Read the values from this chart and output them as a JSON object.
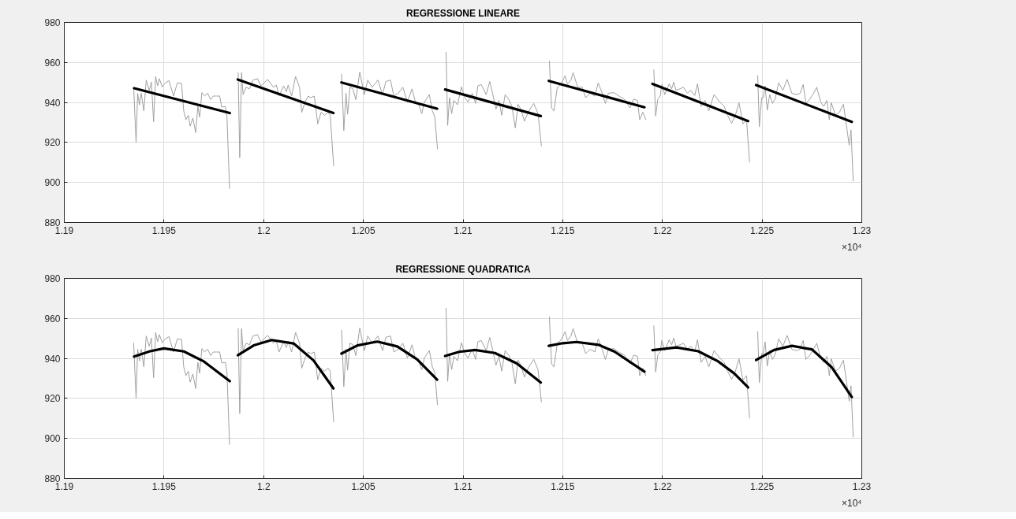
{
  "chart_data": [
    {
      "type": "line",
      "title": "REGRESSIONE LINEARE",
      "annotations": [
        "×10⁴"
      ],
      "grid": true,
      "xlim": [
        1.19,
        1.23
      ],
      "xticks": [
        1.19,
        1.195,
        1.2,
        1.205,
        1.21,
        1.215,
        1.22,
        1.225,
        1.23
      ],
      "ylim": [
        880,
        980
      ],
      "yticks": [
        880,
        900,
        920,
        940,
        960,
        980
      ],
      "series": [
        {
          "color": "#a0a0a0",
          "x": [
            1.19348,
            1.1936,
            1.19368,
            1.19377,
            1.19386,
            1.19399,
            1.19411,
            1.19426,
            1.19437,
            1.19448,
            1.19458,
            1.19468,
            1.19477,
            1.19491,
            1.19506,
            1.19525,
            1.19548,
            1.19567,
            1.19588,
            1.19599,
            1.1961,
            1.19622,
            1.19631,
            1.19645,
            1.19659,
            1.1967,
            1.19679,
            1.1969,
            1.19704,
            1.19719,
            1.19734,
            1.19747,
            1.19764,
            1.19779,
            1.1979,
            1.19808,
            1.19816,
            1.19829,
            1.1985,
            1.19872,
            1.1988,
            1.19889,
            1.19897,
            1.19912,
            1.19929,
            1.19946,
            1.19969,
            1.19986,
            1.2002,
            1.20049,
            1.20064,
            1.20077,
            1.201,
            1.20114,
            1.20123,
            1.2014,
            1.2016,
            1.2018,
            1.20191,
            1.20208,
            1.20223,
            1.20237,
            1.20254,
            1.20271,
            1.20288,
            1.20305,
            1.20323,
            1.20334,
            1.20351,
            1.2037,
            1.20391,
            1.20402,
            1.20413,
            1.20421,
            1.20433,
            1.20448,
            1.20462,
            1.20482,
            1.20505,
            1.20522,
            1.20544,
            1.20573,
            1.20596,
            1.20613,
            1.20636,
            1.20653,
            1.20675,
            1.20698,
            1.20721,
            1.20744,
            1.20761,
            1.20778,
            1.20793,
            1.20806,
            1.20831,
            1.20846,
            1.20858,
            1.20872,
            1.2089,
            1.20915,
            1.20923,
            1.20932,
            1.20943,
            1.20954,
            1.20972,
            1.20992,
            1.21009,
            1.21025,
            1.21046,
            1.21063,
            1.21074,
            1.21091,
            1.21116,
            1.21134,
            1.21148,
            1.21165,
            1.2118,
            1.21194,
            1.21211,
            1.2123,
            1.21245,
            1.21262,
            1.21276,
            1.2129,
            1.21308,
            1.2133,
            1.21355,
            1.21376,
            1.21393,
            1.2141,
            1.21433,
            1.21444,
            1.21456,
            1.21473,
            1.2149,
            1.21512,
            1.21524,
            1.21541,
            1.21552,
            1.21575,
            1.21598,
            1.21615,
            1.21638,
            1.21661,
            1.21678,
            1.21695,
            1.21714,
            1.21729,
            1.21757,
            1.21786,
            1.21809,
            1.21837,
            1.21856,
            1.21875,
            1.21886,
            1.21902,
            1.21917,
            1.21935,
            1.21957,
            1.21966,
            1.21977,
            1.21989,
            1.21997,
            1.22012,
            1.22034,
            1.22046,
            1.22057,
            1.22068,
            1.22088,
            1.22105,
            1.22125,
            1.22142,
            1.22162,
            1.22176,
            1.22194,
            1.22214,
            1.22233,
            1.22259,
            1.22288,
            1.2231,
            1.22327,
            1.22347,
            1.22365,
            1.22384,
            1.22404,
            1.22422,
            1.22437,
            1.22457,
            1.22478,
            1.22486,
            1.22498,
            1.22506,
            1.22515,
            1.22526,
            1.22538,
            1.22552,
            1.22566,
            1.22583,
            1.22604,
            1.22626,
            1.22649,
            1.22674,
            1.22691,
            1.22706,
            1.2272,
            1.2274,
            1.22754,
            1.22774,
            1.22794,
            1.22809,
            1.22825,
            1.22837,
            1.22847,
            1.22868,
            1.22888,
            1.22908,
            1.22923,
            1.22937,
            1.22946,
            1.22957
          ],
          "values": [
            947.6,
            920.0,
            944.6,
            938.8,
            944.6,
            935.8,
            951.2,
            946.1,
            950.2,
            930.3,
            953.0,
            948.3,
            951.9,
            947.8,
            949.8,
            950.9,
            943.2,
            949.8,
            949.5,
            935.8,
            931.4,
            933.6,
            928.2,
            932.2,
            924.9,
            938.0,
            932.6,
            944.9,
            943.2,
            944.6,
            941.4,
            943.2,
            943.2,
            943.2,
            937.7,
            938.0,
            932.9,
            897.0,
            null,
            954.9,
            912.4,
            954.9,
            943.9,
            947.6,
            946.8,
            951.2,
            951.9,
            948.3,
            951.5,
            947.6,
            948.7,
            943.2,
            948.3,
            945.4,
            948.7,
            943.2,
            953.0,
            947.6,
            935.1,
            940.2,
            943.2,
            942.4,
            943.2,
            929.3,
            935.1,
            933.6,
            935.1,
            933.6,
            908.3,
            null,
            954.1,
            925.9,
            944.6,
            934.1,
            947.6,
            946.8,
            941.4,
            955.2,
            943.9,
            951.2,
            947.6,
            951.2,
            943.9,
            950.5,
            951.2,
            943.2,
            944.6,
            947.6,
            940.2,
            946.8,
            940.2,
            938.8,
            934.4,
            940.2,
            943.9,
            935.8,
            932.9,
            916.8,
            null,
            965.1,
            928.5,
            942.4,
            934.4,
            941.0,
            938.8,
            947.8,
            942.4,
            940.2,
            944.6,
            939.5,
            948.3,
            949.0,
            943.9,
            950.5,
            944.6,
            936.6,
            941.0,
            933.6,
            943.9,
            941.4,
            938.0,
            927.3,
            939.1,
            936.6,
            930.7,
            935.8,
            939.5,
            934.4,
            918.3,
            null,
            960.7,
            937.3,
            935.8,
            947.6,
            949.0,
            953.4,
            949.0,
            951.2,
            954.9,
            947.6,
            947.6,
            942.4,
            944.6,
            943.2,
            949.8,
            945.4,
            939.5,
            944.6,
            944.9,
            942.9,
            941.7,
            937.3,
            941.7,
            941.0,
            931.4,
            935.1,
            931.4,
            null,
            956.3,
            933.2,
            941.7,
            943.2,
            949.0,
            943.9,
            949.3,
            946.8,
            950.2,
            946.1,
            946.8,
            947.6,
            944.6,
            946.1,
            943.5,
            949.3,
            938.0,
            941.0,
            935.8,
            943.9,
            940.2,
            938.0,
            933.6,
            929.6,
            933.2,
            939.9,
            929.3,
            931.4,
            910.2,
            null,
            953.4,
            927.8,
            942.4,
            942.4,
            948.3,
            936.1,
            943.9,
            939.5,
            942.0,
            949.8,
            946.1,
            951.5,
            944.6,
            943.9,
            944.6,
            949.0,
            939.5,
            941.7,
            943.9,
            947.6,
            940.2,
            938.0,
            941.0,
            931.4,
            939.9,
            933.6,
            935.1,
            939.1,
            928.5,
            918.6,
            926.3,
            900.7
          ]
        },
        {
          "color": "#000000",
          "x": [
            1.1935,
            1.1983
          ],
          "values": [
            947.1,
            934.7
          ]
        },
        {
          "color": "#000000",
          "x": [
            1.1987,
            1.2035
          ],
          "values": [
            951.5,
            934.7
          ]
        },
        {
          "color": "#000000",
          "x": [
            1.2039,
            1.2087
          ],
          "values": [
            950.0,
            936.9
          ]
        },
        {
          "color": "#000000",
          "x": [
            1.2091,
            1.2139
          ],
          "values": [
            946.5,
            933.2
          ]
        },
        {
          "color": "#000000",
          "x": [
            1.2143,
            1.2191
          ],
          "values": [
            950.8,
            937.6
          ]
        },
        {
          "color": "#000000",
          "x": [
            1.2195,
            1.2243
          ],
          "values": [
            949.3,
            930.7
          ]
        },
        {
          "color": "#000000",
          "x": [
            1.2247,
            1.2295
          ],
          "values": [
            948.7,
            930.3
          ]
        }
      ]
    },
    {
      "type": "line",
      "title": "REGRESSIONE QUADRATICA",
      "annotations": [
        "×10⁴"
      ],
      "grid": true,
      "xlim": [
        1.19,
        1.23
      ],
      "xticks": [
        1.19,
        1.195,
        1.2,
        1.205,
        1.21,
        1.215,
        1.22,
        1.225,
        1.23
      ],
      "ylim": [
        880,
        980
      ],
      "yticks": [
        880,
        900,
        920,
        940,
        960,
        980
      ],
      "series": [
        {
          "color": "#a0a0a0",
          "x": [
            1.19348,
            1.1936,
            1.19368,
            1.19377,
            1.19386,
            1.19399,
            1.19411,
            1.19426,
            1.19437,
            1.19448,
            1.19458,
            1.19468,
            1.19477,
            1.19491,
            1.19506,
            1.19525,
            1.19548,
            1.19567,
            1.19588,
            1.19599,
            1.1961,
            1.19622,
            1.19631,
            1.19645,
            1.19659,
            1.1967,
            1.19679,
            1.1969,
            1.19704,
            1.19719,
            1.19734,
            1.19747,
            1.19764,
            1.19779,
            1.1979,
            1.19808,
            1.19816,
            1.19829,
            1.1985,
            1.19872,
            1.1988,
            1.19889,
            1.19897,
            1.19912,
            1.19929,
            1.19946,
            1.19969,
            1.19986,
            1.2002,
            1.20049,
            1.20064,
            1.20077,
            1.201,
            1.20114,
            1.20123,
            1.2014,
            1.2016,
            1.2018,
            1.20191,
            1.20208,
            1.20223,
            1.20237,
            1.20254,
            1.20271,
            1.20288,
            1.20305,
            1.20323,
            1.20334,
            1.20351,
            1.2037,
            1.20391,
            1.20402,
            1.20413,
            1.20421,
            1.20433,
            1.20448,
            1.20462,
            1.20482,
            1.20505,
            1.20522,
            1.20544,
            1.20573,
            1.20596,
            1.20613,
            1.20636,
            1.20653,
            1.20675,
            1.20698,
            1.20721,
            1.20744,
            1.20761,
            1.20778,
            1.20793,
            1.20806,
            1.20831,
            1.20846,
            1.20858,
            1.20872,
            1.2089,
            1.20915,
            1.20923,
            1.20932,
            1.20943,
            1.20954,
            1.20972,
            1.20992,
            1.21009,
            1.21025,
            1.21046,
            1.21063,
            1.21074,
            1.21091,
            1.21116,
            1.21134,
            1.21148,
            1.21165,
            1.2118,
            1.21194,
            1.21211,
            1.2123,
            1.21245,
            1.21262,
            1.21276,
            1.2129,
            1.21308,
            1.2133,
            1.21355,
            1.21376,
            1.21393,
            1.2141,
            1.21433,
            1.21444,
            1.21456,
            1.21473,
            1.2149,
            1.21512,
            1.21524,
            1.21541,
            1.21552,
            1.21575,
            1.21598,
            1.21615,
            1.21638,
            1.21661,
            1.21678,
            1.21695,
            1.21714,
            1.21729,
            1.21757,
            1.21786,
            1.21809,
            1.21837,
            1.21856,
            1.21875,
            1.21886,
            1.21902,
            1.21917,
            1.21935,
            1.21957,
            1.21966,
            1.21977,
            1.21989,
            1.21997,
            1.22012,
            1.22034,
            1.22046,
            1.22057,
            1.22068,
            1.22088,
            1.22105,
            1.22125,
            1.22142,
            1.22162,
            1.22176,
            1.22194,
            1.22214,
            1.22233,
            1.22259,
            1.22288,
            1.2231,
            1.22327,
            1.22347,
            1.22365,
            1.22384,
            1.22404,
            1.22422,
            1.22437,
            1.22457,
            1.22478,
            1.22486,
            1.22498,
            1.22506,
            1.22515,
            1.22526,
            1.22538,
            1.22552,
            1.22566,
            1.22583,
            1.22604,
            1.22626,
            1.22649,
            1.22674,
            1.22691,
            1.22706,
            1.2272,
            1.2274,
            1.22754,
            1.22774,
            1.22794,
            1.22809,
            1.22825,
            1.22837,
            1.22847,
            1.22868,
            1.22888,
            1.22908,
            1.22923,
            1.22937,
            1.22946,
            1.22957
          ],
          "values": [
            947.6,
            920.0,
            944.6,
            938.8,
            944.6,
            935.8,
            951.2,
            946.1,
            950.2,
            930.3,
            953.0,
            948.3,
            951.9,
            947.8,
            949.8,
            950.9,
            943.2,
            949.8,
            949.5,
            935.8,
            931.4,
            933.6,
            928.2,
            932.2,
            924.9,
            938.0,
            932.6,
            944.9,
            943.2,
            944.6,
            941.4,
            943.2,
            943.2,
            943.2,
            937.7,
            938.0,
            932.9,
            897.0,
            null,
            954.9,
            912.4,
            954.9,
            943.9,
            947.6,
            946.8,
            951.2,
            951.9,
            948.3,
            951.5,
            947.6,
            948.7,
            943.2,
            948.3,
            945.4,
            948.7,
            943.2,
            953.0,
            947.6,
            935.1,
            940.2,
            943.2,
            942.4,
            943.2,
            929.3,
            935.1,
            933.6,
            935.1,
            933.6,
            908.3,
            null,
            954.1,
            925.9,
            944.6,
            934.1,
            947.6,
            946.8,
            941.4,
            955.2,
            943.9,
            951.2,
            947.6,
            951.2,
            943.9,
            950.5,
            951.2,
            943.2,
            944.6,
            947.6,
            940.2,
            946.8,
            940.2,
            938.8,
            934.4,
            940.2,
            943.9,
            935.8,
            932.9,
            916.8,
            null,
            965.1,
            928.5,
            942.4,
            934.4,
            941.0,
            938.8,
            947.8,
            942.4,
            940.2,
            944.6,
            939.5,
            948.3,
            949.0,
            943.9,
            950.5,
            944.6,
            936.6,
            941.0,
            933.6,
            943.9,
            941.4,
            938.0,
            927.3,
            939.1,
            936.6,
            930.7,
            935.8,
            939.5,
            934.4,
            918.3,
            null,
            960.7,
            937.3,
            935.8,
            947.6,
            949.0,
            953.4,
            949.0,
            951.2,
            954.9,
            947.6,
            947.6,
            942.4,
            944.6,
            943.2,
            949.8,
            945.4,
            939.5,
            944.6,
            944.9,
            942.9,
            941.7,
            937.3,
            941.7,
            941.0,
            931.4,
            935.1,
            931.4,
            null,
            956.3,
            933.2,
            941.7,
            943.2,
            949.0,
            943.9,
            949.3,
            946.8,
            950.2,
            946.1,
            946.8,
            947.6,
            944.6,
            946.1,
            943.5,
            949.3,
            938.0,
            941.0,
            935.8,
            943.9,
            940.2,
            938.0,
            933.6,
            929.6,
            933.2,
            939.9,
            929.3,
            931.4,
            910.2,
            null,
            953.4,
            927.8,
            942.4,
            942.4,
            948.3,
            936.1,
            943.9,
            939.5,
            942.0,
            949.8,
            946.1,
            951.5,
            944.6,
            943.9,
            944.6,
            949.0,
            939.5,
            941.7,
            943.9,
            947.6,
            940.2,
            938.0,
            941.0,
            931.4,
            939.9,
            933.6,
            935.1,
            939.1,
            928.5,
            918.6,
            926.3,
            900.7
          ]
        },
        {
          "color": "#000000",
          "x": [
            1.1935,
            1.1943,
            1.195,
            1.196,
            1.197,
            1.1983
          ],
          "values": [
            940.9,
            943.6,
            945.0,
            943.5,
            938.5,
            928.6
          ]
        },
        {
          "color": "#000000",
          "x": [
            1.1987,
            1.1995,
            1.2004,
            1.2015,
            1.2025,
            1.2035
          ],
          "values": [
            941.6,
            946.5,
            949.2,
            947.5,
            939.0,
            925.0
          ]
        },
        {
          "color": "#000000",
          "x": [
            1.2039,
            1.2047,
            1.2057,
            1.2067,
            1.2077,
            1.2087
          ],
          "values": [
            942.4,
            946.5,
            948.4,
            946.0,
            939.5,
            929.4
          ]
        },
        {
          "color": "#000000",
          "x": [
            1.2091,
            1.2098,
            1.2106,
            1.2116,
            1.2127,
            1.2139
          ],
          "values": [
            941.2,
            943.3,
            944.2,
            942.7,
            937.5,
            927.9
          ]
        },
        {
          "color": "#000000",
          "x": [
            1.2143,
            1.215,
            1.2157,
            1.2168,
            1.2176,
            1.2191
          ],
          "values": [
            946.3,
            947.6,
            948.2,
            946.8,
            943.4,
            933.4
          ]
        },
        {
          "color": "#000000",
          "x": [
            1.2195,
            1.2207,
            1.2218,
            1.2228,
            1.2236,
            1.2243
          ],
          "values": [
            944.1,
            945.5,
            943.6,
            938.5,
            932.5,
            925.5
          ]
        },
        {
          "color": "#000000",
          "x": [
            1.2247,
            1.2256,
            1.2265,
            1.2275,
            1.2285,
            1.2295
          ],
          "values": [
            939.2,
            944.2,
            946.3,
            944.5,
            935.5,
            920.7
          ]
        }
      ]
    }
  ]
}
